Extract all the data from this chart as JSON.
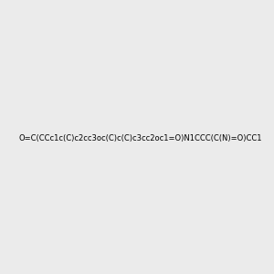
{
  "smiles": "O=C(CCc1c(C)c2cc3oc(C)c(C)c3cc2oc1=O)N1CCC(C(N)=O)CC1",
  "image_size": 300,
  "background_color": "#ebebeb",
  "title": ""
}
